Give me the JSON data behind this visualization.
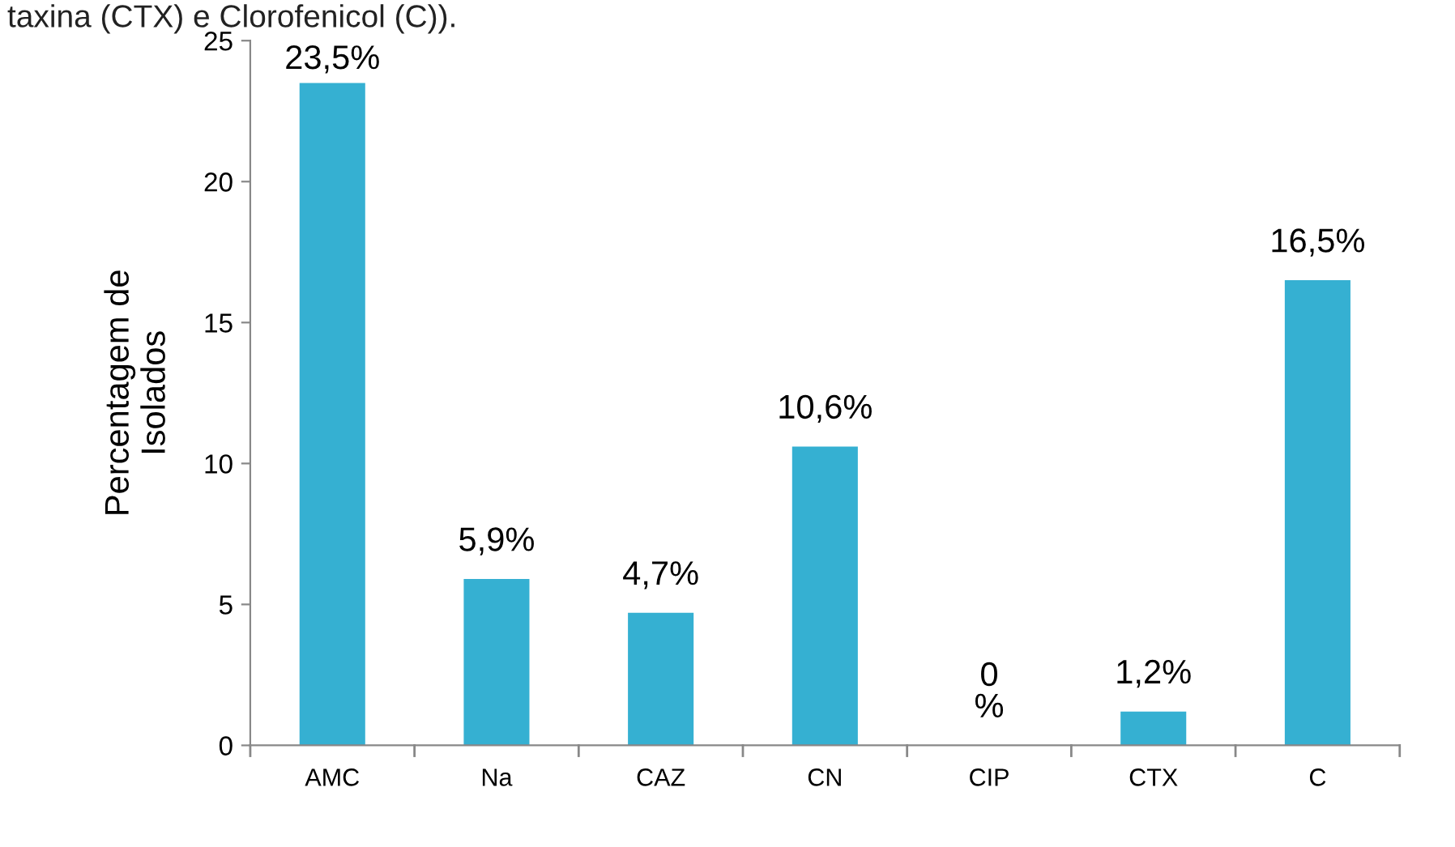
{
  "chart_data": {
    "type": "bar",
    "annotations": [
      "taxina (CTX) e Clorofenicol (C))."
    ],
    "ylabel": "Percentagem de\nIsolados",
    "categories": [
      "AMC",
      "Na",
      "CAZ",
      "CN",
      "CIP",
      "CTX",
      "C"
    ],
    "values": [
      23.5,
      5.9,
      4.7,
      10.6,
      0,
      1.2,
      16.5
    ],
    "value_labels": [
      "23,5%",
      "5,9%",
      "4,7%",
      "10,6%",
      "0\n%",
      "1,2%",
      "16,5%"
    ],
    "color": "#35b0d2",
    "ylim": [
      0,
      25
    ],
    "yticks": [
      0,
      5,
      10,
      15,
      20,
      25
    ],
    "grid": false,
    "legend": false
  }
}
